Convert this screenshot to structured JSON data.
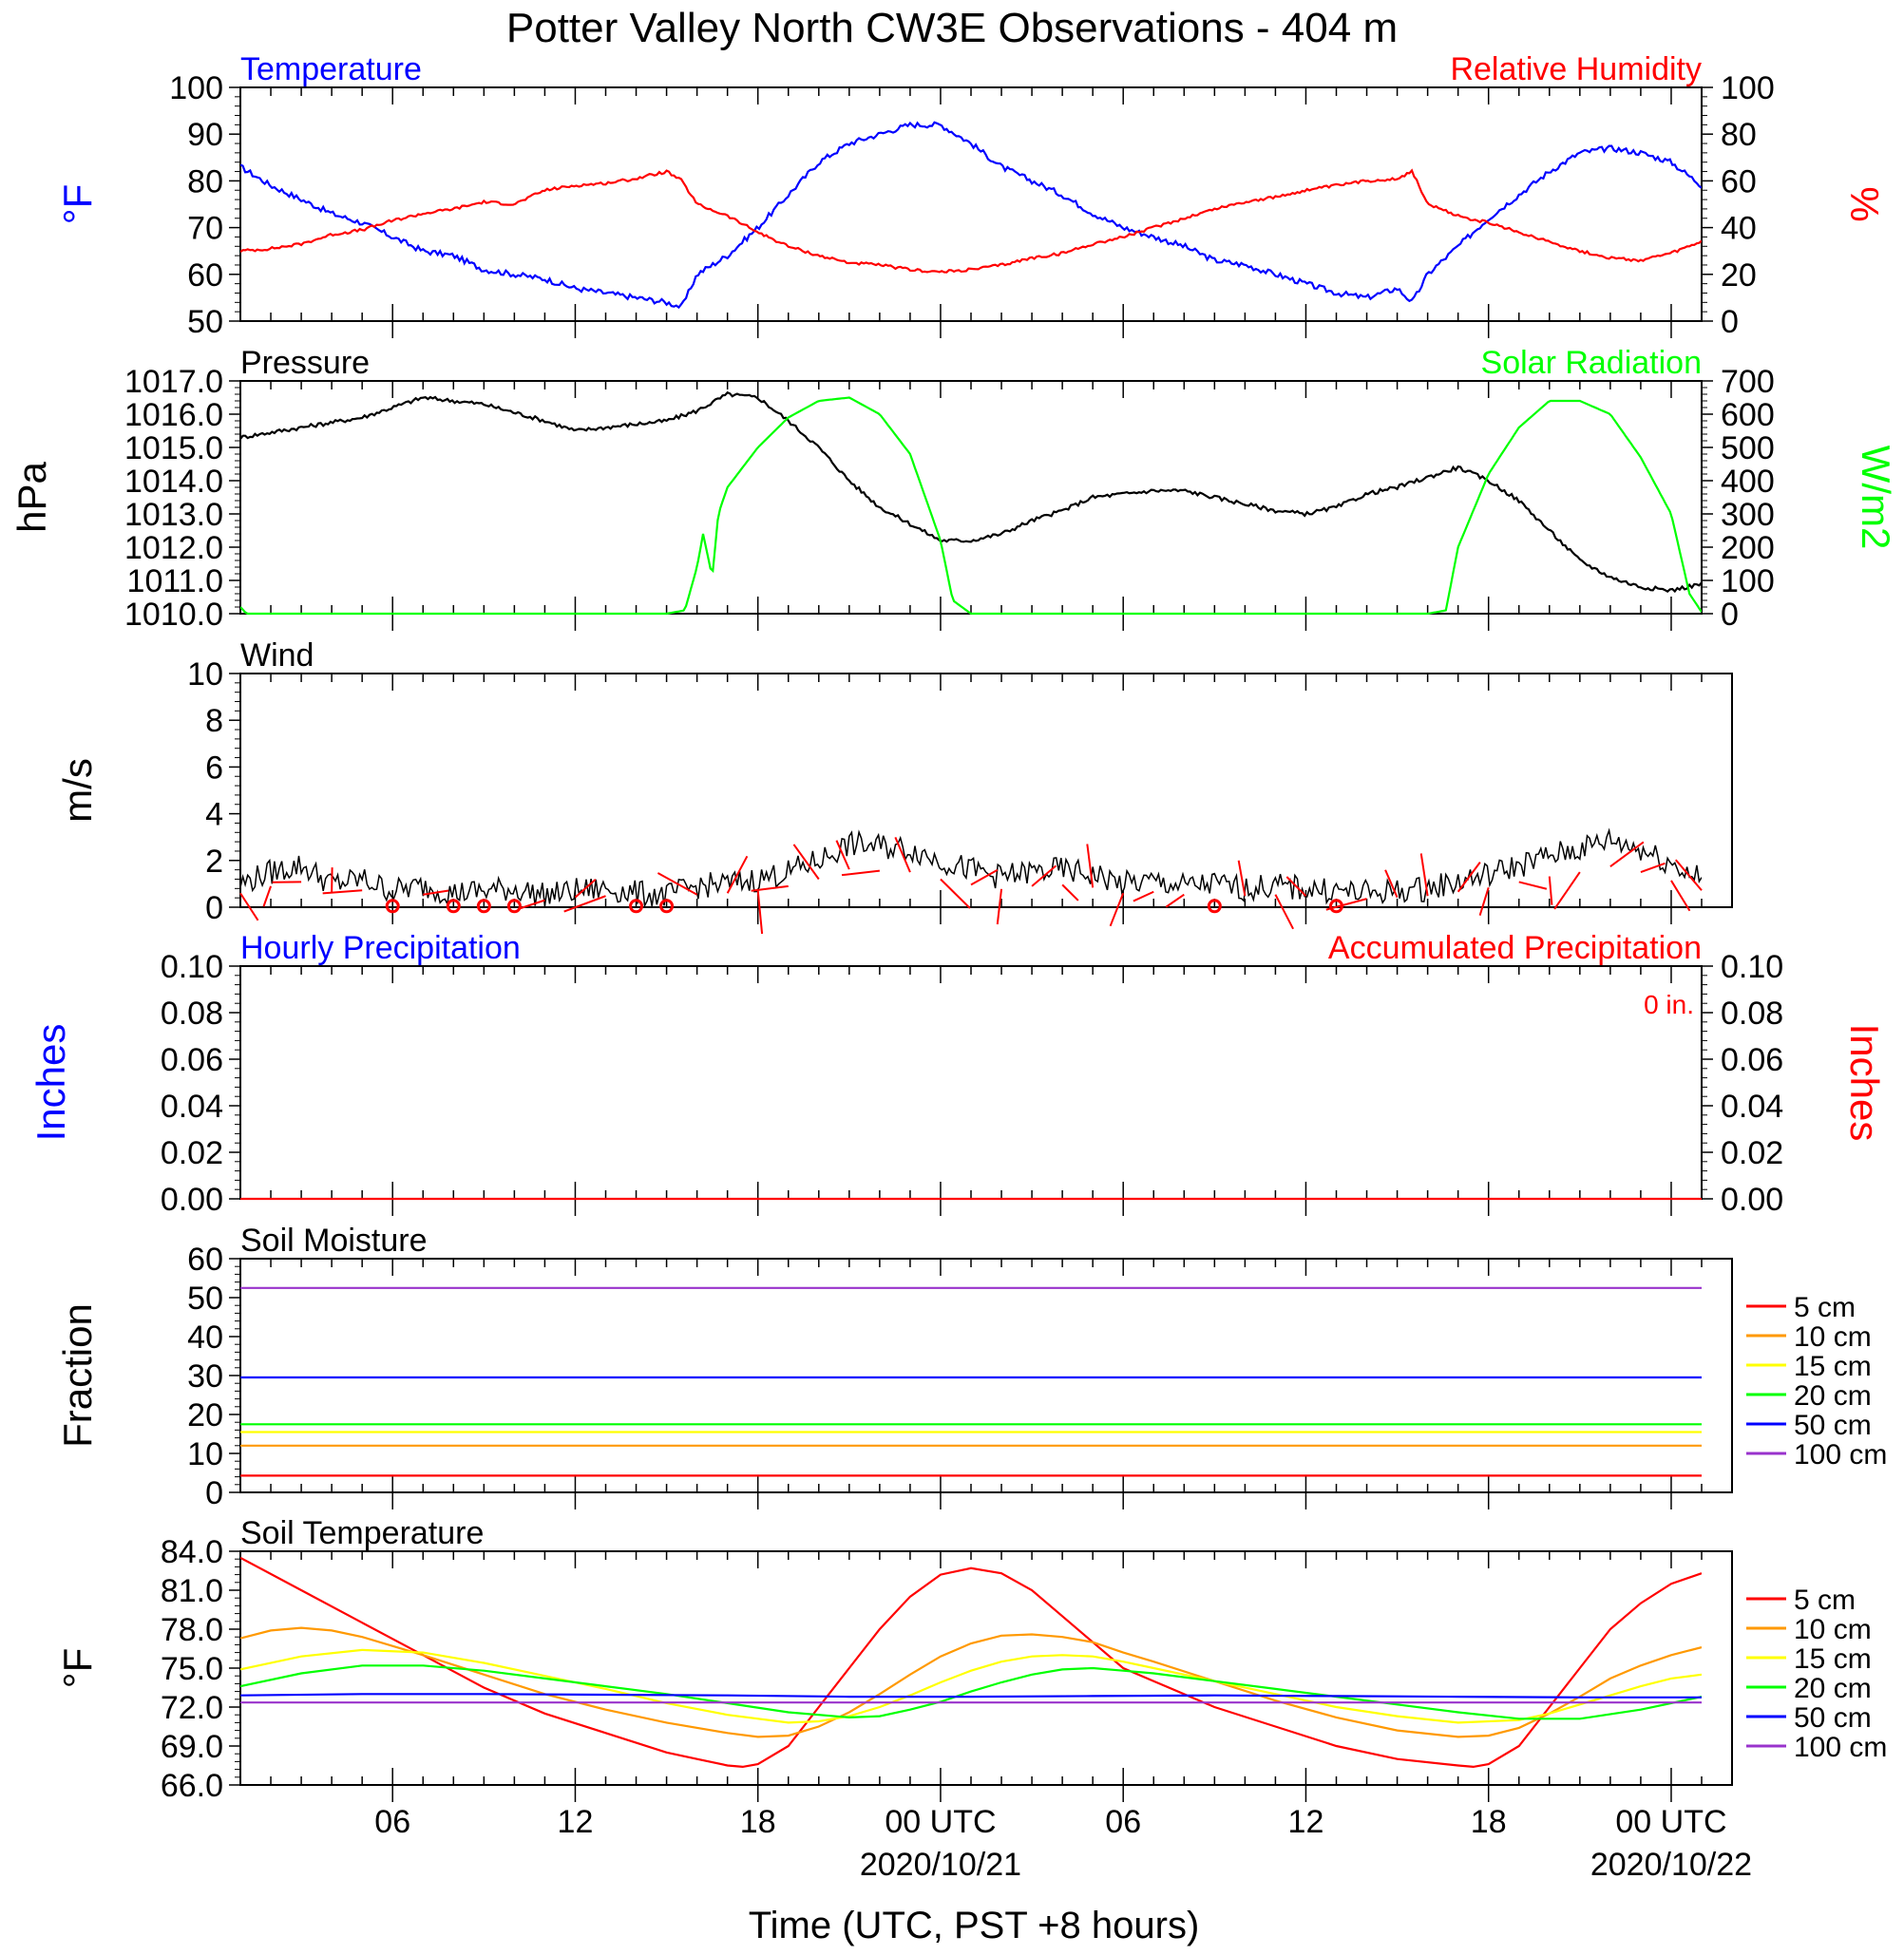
{
  "title": "Potter Valley North CW3E Observations - 404 m",
  "x_axis": {
    "label": "Time (UTC, PST +8 hours)",
    "range_hours": [
      1,
      49
    ],
    "tick_hours": [
      6,
      12,
      18,
      24,
      30,
      36,
      42,
      48
    ],
    "tick_labels": [
      "06",
      "12",
      "18",
      "00 UTC",
      "06",
      "12",
      "18",
      "00 UTC"
    ],
    "date_labels": [
      {
        "hour": 24,
        "text": "2020/10/21"
      },
      {
        "hour": 48,
        "text": "2020/10/22"
      }
    ]
  },
  "colors": {
    "blue": "#0000ff",
    "red": "#ff0000",
    "green": "#00ff00",
    "black": "#000000",
    "orange": "#ff9900",
    "yellow": "#ffff00",
    "purple": "#9933cc"
  },
  "soil_legend": [
    "5 cm",
    "10 cm",
    "15 cm",
    "20 cm",
    "50 cm",
    "100 cm"
  ],
  "chart_data": [
    {
      "type": "line",
      "title_left": "Temperature",
      "title_right": "Relative Humidity",
      "ylabel_left": "°F",
      "ylabel_right": "%",
      "ylim_left": [
        50,
        100
      ],
      "ylim_right": [
        0,
        100
      ],
      "ticks_left": [
        "50",
        "60",
        "70",
        "80",
        "90",
        "100"
      ],
      "ticks_right": [
        "0",
        "20",
        "40",
        "60",
        "80",
        "100"
      ],
      "series": [
        {
          "axis": "left",
          "color": "#0000ff",
          "x": [
            1,
            2,
            3,
            4,
            5,
            6,
            7,
            8,
            9,
            10,
            11,
            12,
            13,
            14,
            15,
            15.5,
            16,
            17,
            18,
            19,
            20,
            21,
            22,
            23,
            24,
            25,
            26,
            27,
            28,
            29,
            30,
            31,
            32,
            33,
            34,
            35,
            36,
            37,
            38,
            39,
            39.5,
            40,
            41,
            42,
            43,
            44,
            45,
            46,
            47,
            48,
            49
          ],
          "y": [
            83,
            79,
            76,
            73,
            71,
            68,
            65,
            64,
            61,
            60,
            59,
            57,
            56,
            55,
            54,
            53,
            60,
            64,
            70,
            77,
            84,
            88,
            90,
            92,
            92,
            88,
            83,
            80,
            77,
            73,
            70,
            68,
            66,
            63,
            62,
            60,
            58,
            56,
            55,
            57,
            54,
            60,
            66,
            72,
            77,
            82,
            86,
            87,
            86,
            84,
            79
          ]
        },
        {
          "axis": "right",
          "color": "#ff0000",
          "x": [
            1,
            2,
            3,
            4,
            5,
            6,
            7,
            8,
            9,
            10,
            11,
            12,
            13,
            14,
            15,
            15.5,
            16,
            17,
            18,
            19,
            20,
            21,
            22,
            23,
            24,
            25,
            26,
            27,
            28,
            29,
            30,
            31,
            32,
            33,
            34,
            35,
            36,
            37,
            38,
            39,
            39.5,
            40,
            41,
            42,
            43,
            44,
            45,
            46,
            47,
            48,
            49
          ],
          "y": [
            30,
            31,
            33,
            37,
            39,
            43,
            46,
            48,
            51,
            50,
            56,
            58,
            59,
            61,
            64,
            60,
            50,
            45,
            38,
            32,
            28,
            25,
            24,
            22,
            21,
            22,
            24,
            27,
            29,
            33,
            36,
            40,
            44,
            48,
            51,
            53,
            56,
            58,
            60,
            61,
            64,
            50,
            45,
            42,
            38,
            34,
            30,
            27,
            26,
            29,
            34
          ]
        }
      ]
    },
    {
      "type": "line",
      "title_left": "Pressure",
      "title_right": "Solar Radiation",
      "ylabel_left": "hPa",
      "ylabel_right": "W/m2",
      "ylim_left": [
        1010,
        1017
      ],
      "ylim_right": [
        0,
        700
      ],
      "ticks_left": [
        "1010.0",
        "1011.0",
        "1012.0",
        "1013.0",
        "1014.0",
        "1015.0",
        "1016.0",
        "1017.0"
      ],
      "ticks_right": [
        "0",
        "100",
        "200",
        "300",
        "400",
        "500",
        "600",
        "700"
      ],
      "series": [
        {
          "axis": "left",
          "color": "#000000",
          "x": [
            1,
            3,
            5,
            7,
            9,
            11,
            12,
            13,
            15,
            16,
            17,
            18,
            19,
            20,
            21,
            22,
            23,
            24,
            25,
            26,
            27,
            28,
            29,
            30,
            31,
            32,
            33,
            34,
            35,
            36,
            37,
            38,
            39,
            40,
            41,
            42,
            43,
            44,
            45,
            46,
            47,
            48,
            49
          ],
          "y": [
            1015.3,
            1015.6,
            1015.9,
            1016.5,
            1016.3,
            1015.8,
            1015.5,
            1015.6,
            1015.8,
            1016.1,
            1016.6,
            1016.5,
            1015.8,
            1015.0,
            1014.0,
            1013.2,
            1012.7,
            1012.2,
            1012.2,
            1012.4,
            1012.8,
            1013.1,
            1013.5,
            1013.6,
            1013.7,
            1013.7,
            1013.5,
            1013.3,
            1013.1,
            1013.0,
            1013.2,
            1013.6,
            1013.8,
            1014.1,
            1014.4,
            1014.0,
            1013.4,
            1012.5,
            1011.6,
            1011.1,
            1010.8,
            1010.7,
            1010.9
          ]
        },
        {
          "axis": "right",
          "color": "#00ff00",
          "x": [
            1,
            1.2,
            15,
            15.6,
            16,
            16.2,
            16.5,
            16.7,
            17,
            18,
            19,
            20,
            21,
            22,
            23,
            24,
            24.4,
            25,
            25,
            40,
            40.6,
            41,
            42,
            43,
            44,
            45,
            46,
            47,
            48,
            48.6,
            49
          ],
          "y": [
            20,
            0,
            0,
            10,
            140,
            240,
            110,
            300,
            380,
            500,
            590,
            640,
            650,
            600,
            480,
            220,
            40,
            0,
            0,
            0,
            10,
            200,
            420,
            560,
            640,
            640,
            600,
            470,
            300,
            60,
            5
          ]
        }
      ]
    },
    {
      "type": "line",
      "title_left": "Wind",
      "ylabel_left": "m/s",
      "ylim_left": [
        0,
        10
      ],
      "ticks_left": [
        "0",
        "2",
        "4",
        "6",
        "8",
        "10"
      ],
      "series": [
        {
          "color": "#000000",
          "x": [
            1,
            2,
            3,
            4,
            5,
            6,
            7,
            8,
            9,
            10,
            11,
            12,
            13,
            14,
            15,
            16,
            17,
            18,
            19,
            20,
            21,
            22,
            23,
            24,
            25,
            26,
            27,
            28,
            29,
            30,
            31,
            32,
            33,
            34,
            35,
            36,
            37,
            38,
            39,
            40,
            41,
            42,
            43,
            44,
            45,
            46,
            47,
            48,
            49
          ],
          "y": [
            1.0,
            1.5,
            1.8,
            1.0,
            1.2,
            0.7,
            0.9,
            0.6,
            0.7,
            0.8,
            0.5,
            0.7,
            0.8,
            0.6,
            0.5,
            0.9,
            1.0,
            1.2,
            1.5,
            2.0,
            2.7,
            2.6,
            2.5,
            2.0,
            1.6,
            1.3,
            1.5,
            1.6,
            1.4,
            1.0,
            1.1,
            0.9,
            1.0,
            0.8,
            0.9,
            0.8,
            0.7,
            0.6,
            0.7,
            0.8,
            1.1,
            1.4,
            1.8,
            2.2,
            2.5,
            2.9,
            2.5,
            1.9,
            1.2
          ]
        }
      ],
      "barb_hours": [
        1,
        2,
        3,
        4,
        5,
        6,
        7,
        8,
        9,
        10,
        11,
        12,
        13,
        14,
        15,
        16,
        17,
        18,
        19,
        20,
        21,
        22,
        23,
        24,
        25,
        26,
        27,
        28,
        29,
        30,
        31,
        32,
        33,
        34,
        35,
        36,
        37,
        38,
        39,
        40,
        41,
        42,
        43,
        44,
        45,
        46,
        47,
        48,
        49
      ]
    },
    {
      "type": "line",
      "title_left": "Hourly Precipitation",
      "title_right": "Accumulated Precipitation",
      "total_label": "0 in.",
      "ylabel_left": "Inches",
      "ylabel_right": "Inches",
      "ylim_left": [
        0,
        0.1
      ],
      "ylim_right": [
        0,
        0.1
      ],
      "ticks_left": [
        "0.00",
        "0.02",
        "0.04",
        "0.06",
        "0.08",
        "0.10"
      ],
      "ticks_right": [
        "0.00",
        "0.02",
        "0.04",
        "0.06",
        "0.08",
        "0.10"
      ],
      "series": [
        {
          "color": "#ff0000",
          "x": [
            1,
            49
          ],
          "y": [
            0,
            0
          ]
        }
      ]
    },
    {
      "type": "line",
      "title_left": "Soil Moisture",
      "ylabel_left": "Fraction",
      "ylim_left": [
        0,
        60
      ],
      "ticks_left": [
        "0",
        "10",
        "20",
        "30",
        "40",
        "50",
        "60"
      ],
      "series": [
        {
          "name": "5 cm",
          "color": "#ff0000",
          "x": [
            1,
            49
          ],
          "y": [
            4.3,
            4.3
          ]
        },
        {
          "name": "10 cm",
          "color": "#ff9900",
          "x": [
            1,
            49
          ],
          "y": [
            12.0,
            12.0
          ]
        },
        {
          "name": "15 cm",
          "color": "#ffff00",
          "x": [
            1,
            49
          ],
          "y": [
            15.5,
            15.5
          ]
        },
        {
          "name": "20 cm",
          "color": "#00ff00",
          "x": [
            1,
            49
          ],
          "y": [
            17.5,
            17.5
          ]
        },
        {
          "name": "50 cm",
          "color": "#0000ff",
          "x": [
            1,
            49
          ],
          "y": [
            29.5,
            29.5
          ]
        },
        {
          "name": "100 cm",
          "color": "#9933cc",
          "x": [
            1,
            49
          ],
          "y": [
            52.5,
            52.5
          ]
        }
      ]
    },
    {
      "type": "line",
      "title_left": "Soil Temperature",
      "ylabel_left": "°F",
      "ylim_left": [
        66,
        84
      ],
      "ticks_left": [
        "66.0",
        "69.0",
        "72.0",
        "75.0",
        "78.0",
        "81.0",
        "84.0"
      ],
      "series": [
        {
          "name": "5 cm",
          "color": "#ff0000",
          "x": [
            1,
            3,
            5,
            7,
            9,
            11,
            13,
            15,
            16,
            17,
            17.5,
            18,
            19,
            20,
            21,
            22,
            23,
            24,
            25,
            26,
            27,
            28,
            29,
            30,
            31,
            33,
            35,
            37,
            39,
            41,
            41.5,
            42,
            43,
            44,
            45,
            46,
            47,
            48,
            49
          ],
          "y": [
            83.5,
            81,
            78.5,
            76,
            73.5,
            71.5,
            70,
            68.5,
            68,
            67.5,
            67.4,
            67.6,
            69,
            72,
            75,
            78,
            80.5,
            82.2,
            82.7,
            82.3,
            81,
            79,
            77,
            75,
            74,
            72,
            70.5,
            69,
            68,
            67.5,
            67.4,
            67.6,
            69,
            72,
            75,
            78,
            80,
            81.5,
            82.3
          ]
        },
        {
          "name": "10 cm",
          "color": "#ff9900",
          "x": [
            1,
            2,
            3,
            4,
            5,
            7,
            9,
            11,
            13,
            15,
            17,
            18,
            19,
            20,
            21,
            22,
            23,
            24,
            25,
            26,
            27,
            28,
            29,
            30,
            31,
            33,
            35,
            37,
            39,
            41,
            42,
            43,
            44,
            45,
            46,
            47,
            48,
            49
          ],
          "y": [
            77.3,
            77.9,
            78.1,
            77.9,
            77.4,
            76,
            74.5,
            73,
            71.8,
            70.8,
            70,
            69.7,
            69.8,
            70.5,
            71.6,
            73,
            74.5,
            75.9,
            76.9,
            77.5,
            77.6,
            77.4,
            77,
            76.2,
            75.5,
            74,
            72.5,
            71.2,
            70.2,
            69.7,
            69.8,
            70.4,
            71.5,
            72.8,
            74.2,
            75.2,
            76,
            76.6
          ]
        },
        {
          "name": "15 cm",
          "color": "#ffff00",
          "x": [
            1,
            3,
            5,
            7,
            9,
            11,
            13,
            15,
            17,
            19,
            20,
            21,
            22,
            23,
            24,
            25,
            26,
            27,
            28,
            29,
            30,
            31,
            33,
            35,
            37,
            39,
            41,
            43,
            44,
            45,
            46,
            47,
            48,
            49
          ],
          "y": [
            74.9,
            75.9,
            76.4,
            76.2,
            75.4,
            74.4,
            73.4,
            72.3,
            71.4,
            70.8,
            70.9,
            71.3,
            72,
            72.9,
            73.9,
            74.8,
            75.5,
            75.9,
            76,
            75.9,
            75.5,
            75,
            74,
            73,
            72,
            71.3,
            70.8,
            71,
            71.5,
            72.2,
            72.9,
            73.6,
            74.2,
            74.5
          ]
        },
        {
          "name": "20 cm",
          "color": "#00ff00",
          "x": [
            1,
            3,
            5,
            7,
            9,
            11,
            13,
            15,
            17,
            19,
            21,
            22,
            23,
            24,
            25,
            26,
            27,
            28,
            29,
            30,
            31,
            33,
            35,
            37,
            39,
            41,
            43,
            45,
            47,
            48,
            49
          ],
          "y": [
            73.6,
            74.6,
            75.2,
            75.2,
            74.8,
            74.2,
            73.6,
            73,
            72.3,
            71.6,
            71.2,
            71.3,
            71.8,
            72.4,
            73.2,
            73.9,
            74.5,
            74.9,
            75,
            74.8,
            74.6,
            74,
            73.4,
            72.8,
            72.2,
            71.6,
            71.1,
            71.1,
            71.8,
            72.3,
            72.8
          ]
        },
        {
          "name": "50 cm",
          "color": "#0000ff",
          "x": [
            1,
            5,
            9,
            13,
            17,
            21,
            25,
            29,
            33,
            37,
            41,
            45,
            49
          ],
          "y": [
            72.9,
            73.0,
            73.0,
            72.95,
            72.9,
            72.8,
            72.8,
            72.85,
            72.9,
            72.85,
            72.8,
            72.75,
            72.75
          ]
        },
        {
          "name": "100 cm",
          "color": "#9933cc",
          "x": [
            1,
            49
          ],
          "y": [
            72.35,
            72.35
          ]
        }
      ]
    }
  ]
}
